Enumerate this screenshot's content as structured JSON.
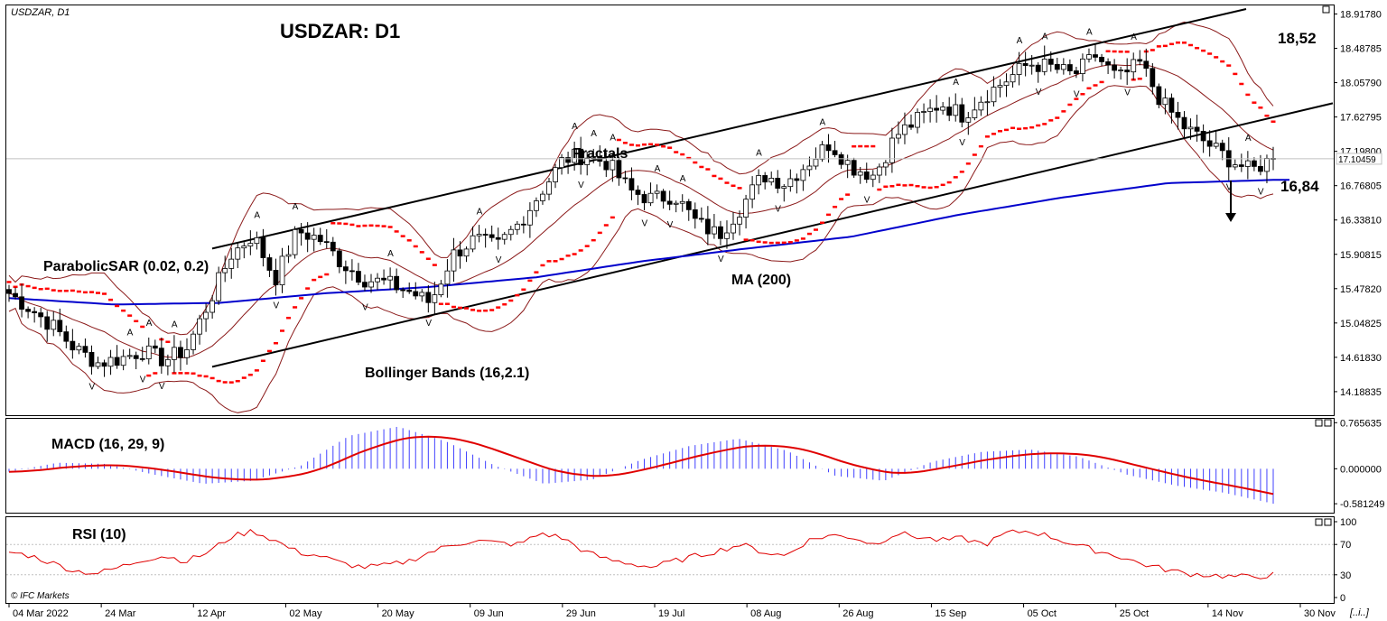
{
  "header": {
    "symbol_tf": "USDZAR, D1",
    "title": "USDZAR: D1"
  },
  "annotations": {
    "parabolic_sar": "ParabolicSAR (0.02, 0.2)",
    "fractals": "Fractals",
    "ma": "MA (200)",
    "bollinger": "Bollinger Bands (16,2.1)",
    "level_high": "18,52",
    "level_low": "16,84"
  },
  "current_price": "17.10459",
  "footer": {
    "brand": "© IFC Markets",
    "scroll": "[..i..]"
  },
  "colors": {
    "bull": "#ffffff",
    "bear": "#000000",
    "ma": "#0000cc",
    "bollinger": "#8b1a1a",
    "sar": "#ff0000",
    "fractal_up": "#00a000",
    "fractal_down": "#ff0000",
    "macd_hist": "#4040ff",
    "macd_signal": "#e00000",
    "rsi": "#e00000"
  },
  "chart_data": [
    {
      "type": "candlestick",
      "title": "USDZAR: D1",
      "ylim": [
        13.95,
        18.98
      ],
      "y_ticks": [
        "18.91780",
        "18.48785",
        "18.05790",
        "17.62795",
        "17.19800",
        "16.76805",
        "16.33810",
        "15.90815",
        "15.47820",
        "15.04825",
        "14.61830",
        "14.18835"
      ],
      "x_ticks": [
        "04 Mar 2022",
        "24 Mar",
        "12 Apr",
        "02 May",
        "20 May",
        "09 Jun",
        "29 Jun",
        "19 Jul",
        "08 Aug",
        "26 Aug",
        "15 Sep",
        "05 Oct",
        "25 Oct",
        "14 Nov",
        "30 Nov"
      ],
      "price_anchors": [
        15.42,
        15.22,
        15.0,
        14.72,
        14.55,
        14.6,
        14.7,
        14.58,
        14.72,
        15.3,
        15.9,
        16.15,
        15.6,
        16.2,
        16.1,
        15.8,
        15.6,
        15.55,
        15.45,
        15.3,
        15.9,
        16.1,
        16.0,
        16.3,
        16.7,
        17.1,
        17.15,
        17.05,
        16.7,
        16.6,
        16.65,
        16.3,
        16.15,
        16.5,
        16.9,
        16.8,
        17.05,
        17.3,
        17.0,
        16.9,
        17.4,
        17.6,
        17.8,
        17.65,
        17.9,
        18.1,
        18.3,
        18.25,
        18.15,
        18.4,
        18.1,
        18.3,
        17.8,
        17.5,
        17.3,
        17.1,
        16.95,
        17.12
      ],
      "series": [
        {
          "name": "MA (200)",
          "values_at": [
            15.36,
            15.28,
            15.3,
            15.42,
            15.5,
            15.62,
            15.82,
            15.98,
            16.13,
            16.4,
            16.62,
            16.8,
            16.84
          ]
        }
      ],
      "level_labels": {
        "resistance": 18.52,
        "support": 16.84
      },
      "current": 17.10459
    },
    {
      "type": "line",
      "title": "MACD (16, 29, 9)",
      "y_ticks": [
        "0.765635",
        "0.000000",
        "-0.581249"
      ],
      "ylim": [
        -0.7,
        0.8
      ],
      "histogram": [
        -0.05,
        0.1,
        0.08,
        -0.1,
        -0.25,
        -0.2,
        0.05,
        0.55,
        0.7,
        0.45,
        0.05,
        -0.25,
        -0.18,
        0.15,
        0.38,
        0.5,
        0.3,
        -0.12,
        -0.2,
        0.12,
        0.28,
        0.32,
        0.2,
        -0.1,
        -0.28,
        -0.4,
        -0.58
      ]
    },
    {
      "type": "line",
      "title": "RSI (10)",
      "y_ticks": [
        "100",
        "70",
        "30",
        "0"
      ],
      "ylim": [
        0,
        100
      ],
      "values": [
        60,
        55,
        45,
        35,
        32,
        40,
        50,
        55,
        48,
        60,
        80,
        88,
        75,
        60,
        55,
        45,
        40,
        42,
        48,
        60,
        70,
        75,
        72,
        70,
        85,
        78,
        60,
        50,
        45,
        40,
        48,
        55,
        62,
        70,
        60,
        55,
        75,
        82,
        80,
        70,
        85,
        80,
        75,
        78,
        70,
        85,
        88,
        80,
        70,
        62,
        55,
        45,
        38,
        32,
        30,
        28,
        27,
        30
      ]
    }
  ]
}
